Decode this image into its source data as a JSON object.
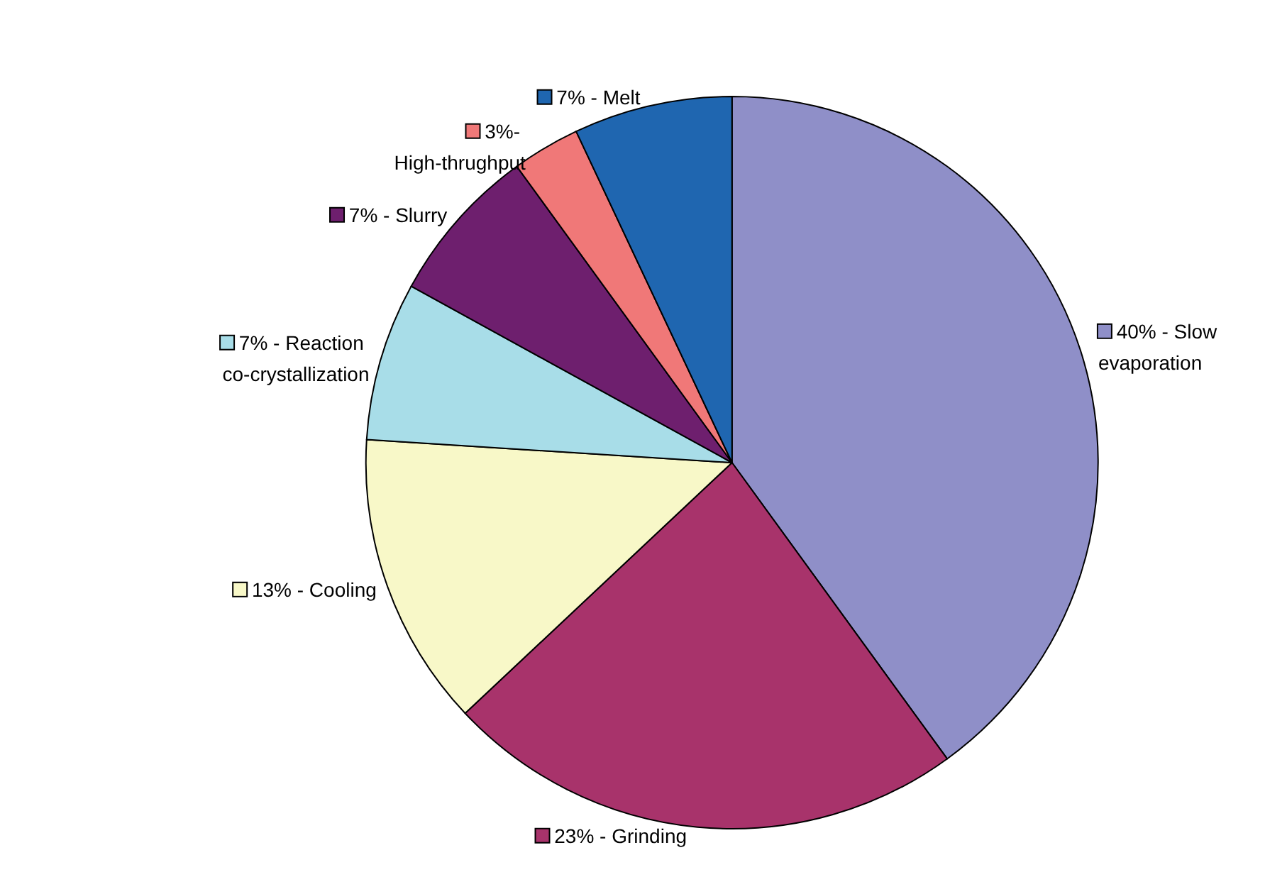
{
  "chart_data": {
    "type": "pie",
    "categories": [
      "40% - Slow evaporation",
      "23% - Grinding",
      "13% - Cooling",
      "7% - Reaction co-crystallization",
      "7% - Slurry",
      "3%- High-thrughput",
      "7% - Melt"
    ],
    "values": [
      40,
      23,
      13,
      7,
      7,
      3,
      7
    ],
    "colors": [
      "#8f8fc8",
      "#a8336b",
      "#f8f8c8",
      "#a8dde8",
      "#6e1f6e",
      "#f07878",
      "#1f66b0"
    ],
    "legend": "bottom left"
  }
}
